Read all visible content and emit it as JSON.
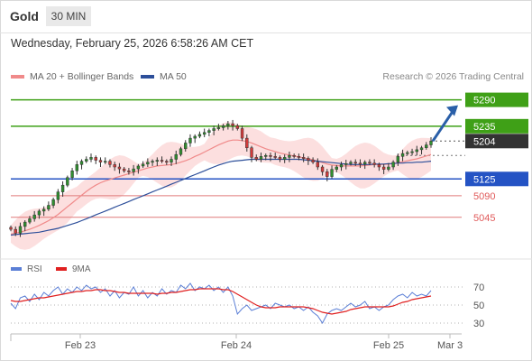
{
  "header": {
    "symbol": "Gold",
    "timeframe": "30 MIN"
  },
  "datetime": "Wednesday, February 25, 2026 6:58:26 AM CET",
  "legend": {
    "ma20_label": "MA 20 + Bollinger Bands",
    "ma20_color": "#f08a8a",
    "ma50_label": "MA 50",
    "ma50_color": "#2d4f9a",
    "research": "Research © 2026 Trading Central"
  },
  "rsi_legend": {
    "rsi_label": "RSI",
    "rsi_color": "#5b7fd6",
    "ma_label": "9MA",
    "ma_color": "#e02020"
  },
  "colors": {
    "green": "#3fa017",
    "blue": "#2453c4",
    "red": "#e07a7a",
    "dark": "#333333",
    "arrow": "#2a5fa8",
    "band": "#fbd9d9"
  },
  "chart_data": {
    "type": "candlestick",
    "title": "",
    "price_axis": {
      "range": [
        4975,
        5325
      ],
      "levels": [
        {
          "label": "5290",
          "value": 5290,
          "style": "resistance-green"
        },
        {
          "label": "5235",
          "value": 5235,
          "style": "resistance-green"
        },
        {
          "label": "5204",
          "value": 5204,
          "style": "current-price"
        },
        {
          "label": "5125",
          "value": 5125,
          "style": "pivot-blue"
        },
        {
          "label": "5090",
          "value": 5090,
          "style": "support-red"
        },
        {
          "label": "5045",
          "value": 5045,
          "style": "support-red"
        }
      ]
    },
    "x_axis": {
      "ticks": [
        "Feb 23",
        "Feb 24",
        "Feb 25",
        "Mar 3"
      ]
    },
    "close": [
      5020,
      5012,
      5026,
      5035,
      5042,
      5050,
      5058,
      5062,
      5070,
      5082,
      5098,
      5112,
      5128,
      5142,
      5155,
      5162,
      5166,
      5170,
      5164,
      5160,
      5162,
      5155,
      5150,
      5146,
      5142,
      5140,
      5146,
      5152,
      5156,
      5160,
      5162,
      5164,
      5162,
      5160,
      5166,
      5176,
      5188,
      5200,
      5210,
      5214,
      5218,
      5222,
      5226,
      5230,
      5232,
      5236,
      5240,
      5236,
      5230,
      5210,
      5190,
      5170,
      5166,
      5172,
      5174,
      5172,
      5170,
      5166,
      5170,
      5174,
      5172,
      5170,
      5168,
      5164,
      5160,
      5150,
      5140,
      5130,
      5145,
      5150,
      5155,
      5157,
      5160,
      5158,
      5156,
      5160,
      5158,
      5155,
      5150,
      5145,
      5150,
      5160,
      5172,
      5178,
      5180,
      5182,
      5186,
      5190,
      5196,
      5204
    ],
    "ma20": [
      5010,
      5012,
      5014,
      5017,
      5020,
      5024,
      5028,
      5033,
      5038,
      5044,
      5051,
      5059,
      5067,
      5075,
      5083,
      5091,
      5099,
      5106,
      5112,
      5117,
      5121,
      5124,
      5127,
      5130,
      5133,
      5136,
      5139,
      5142,
      5145,
      5148,
      5150,
      5152,
      5153,
      5154,
      5155,
      5157,
      5160,
      5163,
      5167,
      5172,
      5176,
      5181,
      5186,
      5191,
      5196,
      5200,
      5204,
      5206,
      5206,
      5205,
      5203,
      5200,
      5196,
      5192,
      5188,
      5185,
      5182,
      5179,
      5177,
      5175,
      5173,
      5171,
      5169,
      5167,
      5165,
      5162,
      5159,
      5156,
      5154,
      5153,
      5152,
      5152,
      5152,
      5152,
      5152,
      5153,
      5154,
      5155,
      5155,
      5155,
      5156,
      5157,
      5159,
      5161,
      5163,
      5165,
      5167,
      5170,
      5173,
      5176
    ],
    "ma50": [
      5008,
      5009,
      5010,
      5011,
      5012,
      5013,
      5014,
      5016,
      5018,
      5020,
      5022,
      5025,
      5028,
      5031,
      5034,
      5038,
      5042,
      5046,
      5050,
      5054,
      5058,
      5062,
      5066,
      5070,
      5074,
      5078,
      5082,
      5086,
      5090,
      5094,
      5098,
      5102,
      5106,
      5110,
      5114,
      5118,
      5122,
      5126,
      5130,
      5134,
      5138,
      5142,
      5146,
      5150,
      5154,
      5157,
      5160,
      5162,
      5163,
      5164,
      5165,
      5166,
      5166,
      5166,
      5166,
      5166,
      5166,
      5166,
      5166,
      5166,
      5166,
      5166,
      5165,
      5164,
      5163,
      5162,
      5161,
      5160,
      5159,
      5158,
      5157,
      5156,
      5155,
      5155,
      5155,
      5155,
      5155,
      5156,
      5156,
      5156,
      5157,
      5157,
      5158,
      5158,
      5159,
      5159,
      5160,
      5160,
      5161,
      5162
    ],
    "rsi": {
      "levels": [
        70,
        50,
        30
      ],
      "range": [
        20,
        80
      ],
      "rsi": [
        52,
        46,
        58,
        60,
        54,
        62,
        56,
        64,
        60,
        66,
        70,
        62,
        68,
        64,
        70,
        66,
        72,
        68,
        70,
        64,
        68,
        60,
        66,
        58,
        64,
        62,
        70,
        60,
        66,
        58,
        64,
        60,
        68,
        62,
        66,
        64,
        72,
        68,
        74,
        66,
        70,
        68,
        72,
        66,
        70,
        64,
        70,
        60,
        40,
        46,
        50,
        44,
        46,
        48,
        50,
        46,
        52,
        50,
        48,
        50,
        46,
        48,
        44,
        48,
        42,
        38,
        30,
        40,
        44,
        46,
        44,
        48,
        52,
        48,
        50,
        54,
        46,
        48,
        44,
        48,
        50,
        56,
        60,
        62,
        58,
        64,
        60,
        62,
        60,
        66
      ],
      "ma9": [
        55,
        54,
        54,
        55,
        56,
        57,
        58,
        58,
        59,
        60,
        61,
        62,
        63,
        64,
        65,
        65,
        66,
        66,
        67,
        67,
        66,
        66,
        65,
        64,
        64,
        63,
        63,
        63,
        63,
        63,
        63,
        62,
        63,
        63,
        64,
        64,
        65,
        66,
        67,
        67,
        68,
        68,
        68,
        68,
        68,
        67,
        67,
        65,
        62,
        59,
        56,
        53,
        50,
        48,
        47,
        47,
        47,
        48,
        48,
        48,
        48,
        48,
        48,
        47,
        46,
        44,
        42,
        41,
        40,
        41,
        42,
        43,
        45,
        46,
        47,
        48,
        48,
        48,
        48,
        48,
        48,
        49,
        51,
        53,
        54,
        56,
        57,
        58,
        59,
        60
      ]
    }
  }
}
